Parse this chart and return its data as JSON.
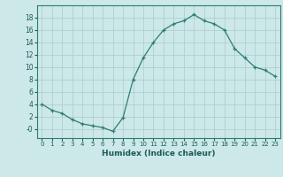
{
  "x": [
    0,
    1,
    2,
    3,
    4,
    5,
    6,
    7,
    8,
    9,
    10,
    11,
    12,
    13,
    14,
    15,
    16,
    17,
    18,
    19,
    20,
    21,
    22,
    23
  ],
  "y": [
    4,
    3,
    2.5,
    1.5,
    0.8,
    0.5,
    0.2,
    -0.4,
    1.8,
    8,
    11.5,
    14,
    16,
    17,
    17.5,
    18.5,
    17.5,
    17,
    16,
    13,
    11.5,
    10,
    9.5,
    8.5
  ],
  "xlabel": "Humidex (Indice chaleur)",
  "xlim": [
    -0.5,
    23.5
  ],
  "ylim": [
    -1.5,
    20
  ],
  "yticks": [
    0,
    2,
    4,
    6,
    8,
    10,
    12,
    14,
    16,
    18
  ],
  "ytick_labels": [
    "-0",
    "2",
    "4",
    "6",
    "8",
    "10",
    "12",
    "14",
    "16",
    "18"
  ],
  "xticks": [
    0,
    1,
    2,
    3,
    4,
    5,
    6,
    7,
    8,
    9,
    10,
    11,
    12,
    13,
    14,
    15,
    16,
    17,
    18,
    19,
    20,
    21,
    22,
    23
  ],
  "line_color": "#2e7d6e",
  "marker": "+",
  "bg_color": "#cce8e8",
  "grid_color": "#b0d0d0",
  "label_color": "#1a5c52",
  "tick_color": "#1a5c52",
  "spine_color": "#2e7d6e"
}
